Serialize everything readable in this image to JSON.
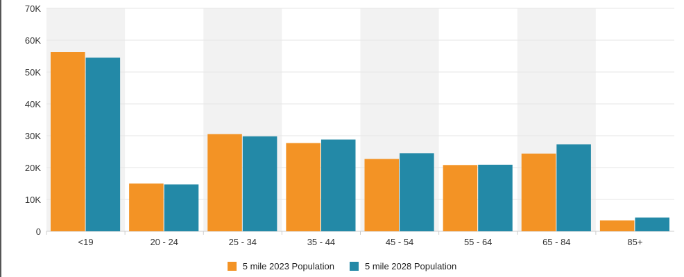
{
  "chart_data": {
    "type": "bar",
    "categories": [
      "<19",
      "20 - 24",
      "25 - 34",
      "35 - 44",
      "45 - 54",
      "55 - 64",
      "65 - 84",
      "85+"
    ],
    "series": [
      {
        "name": "5 mile 2023 Population",
        "color": "#F39325",
        "values": [
          56300,
          15000,
          30500,
          27700,
          22700,
          20800,
          24400,
          3400
        ]
      },
      {
        "name": "5 mile 2028 Population",
        "color": "#2389A7",
        "values": [
          54500,
          14700,
          29800,
          28800,
          24500,
          20900,
          27300,
          4300
        ]
      }
    ],
    "ylim": [
      0,
      70000
    ],
    "yticks": [
      0,
      10000,
      20000,
      30000,
      40000,
      50000,
      60000,
      70000
    ],
    "ytick_labels": [
      "0",
      "10K",
      "20K",
      "30K",
      "40K",
      "50K",
      "60K",
      "70K"
    ],
    "grid": true,
    "band_color": "#f2f2f2",
    "legend_position": "bottom-center"
  }
}
